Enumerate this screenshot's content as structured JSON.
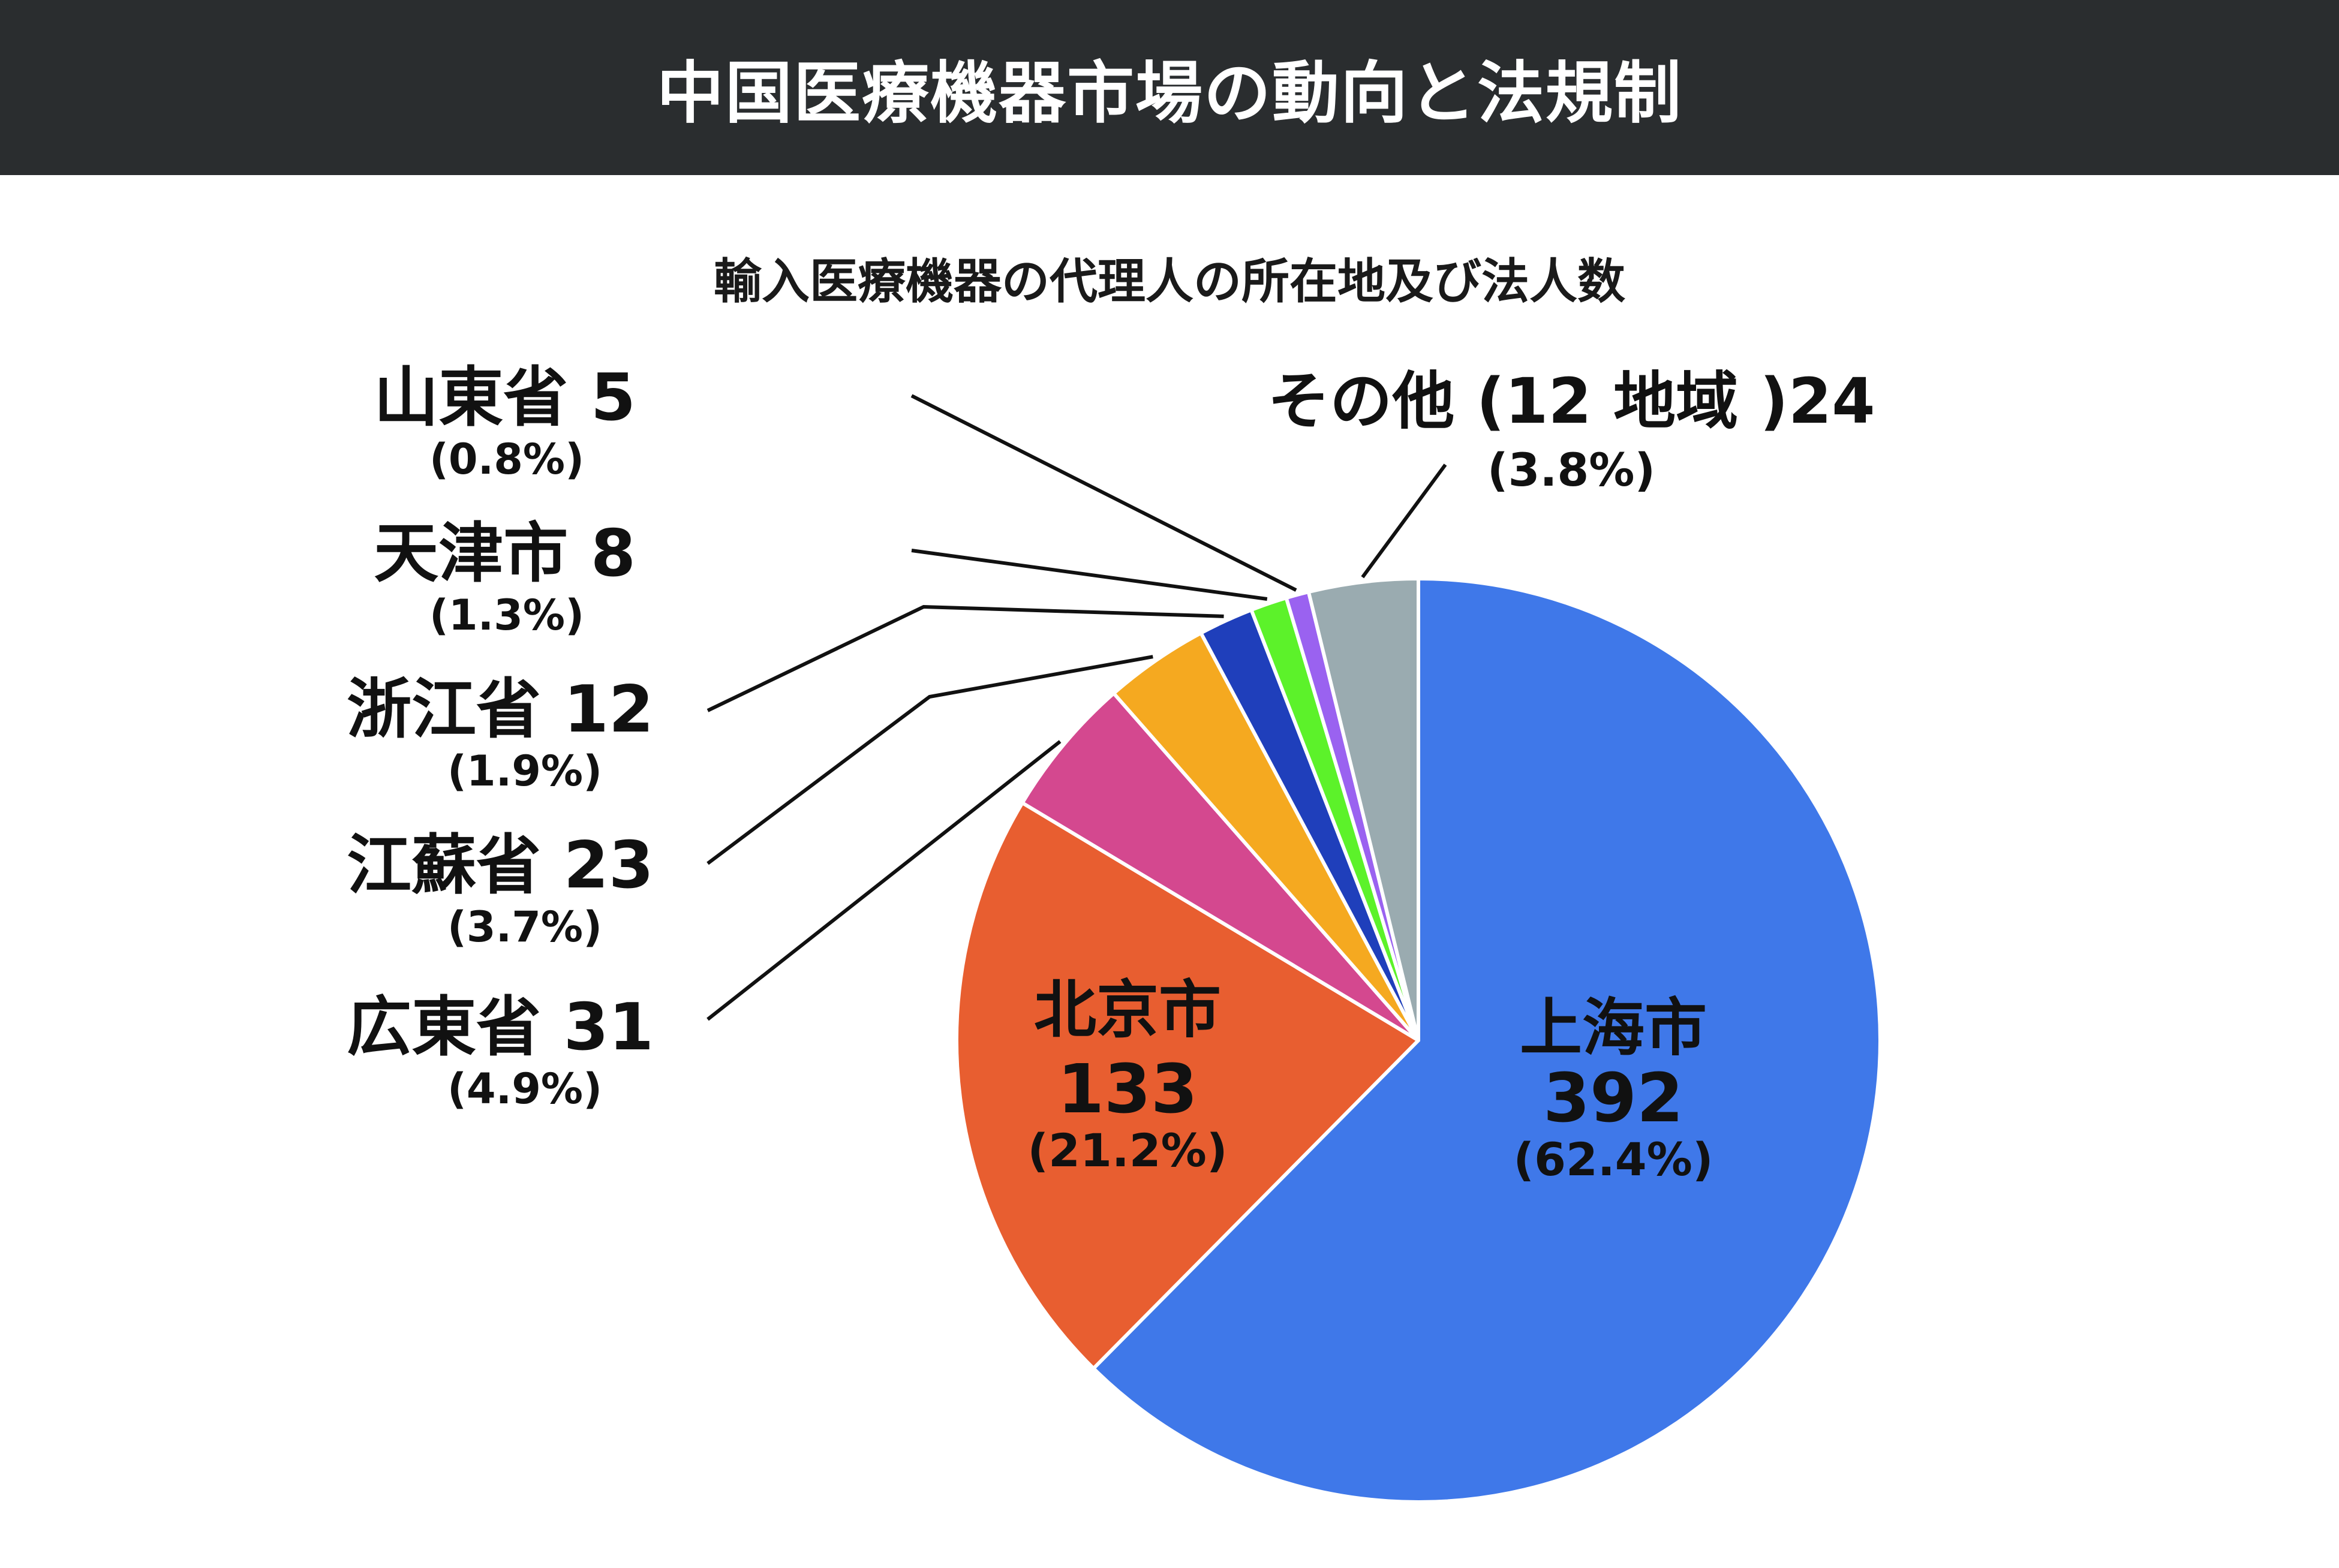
{
  "header": {
    "title": "中国医療機器市場の動向と法規制"
  },
  "chart_data": {
    "type": "pie",
    "title": "輸入医療機器の代理人の所在地及び法人数",
    "slices": [
      {
        "label": "上海市",
        "value": 392,
        "percent": "(62.4%)",
        "color": "#3f78e9"
      },
      {
        "label": "北京市",
        "value": 133,
        "percent": "(21.2%)",
        "color": "#e85e30"
      },
      {
        "label": "広東省",
        "value": 31,
        "percent": "(4.9%)",
        "color": "#d4488f"
      },
      {
        "label": "江蘇省",
        "value": 23,
        "percent": "(3.7%)",
        "color": "#f5a920"
      },
      {
        "label": "浙江省",
        "value": 12,
        "percent": "(1.9%)",
        "color": "#1f3fbb"
      },
      {
        "label": "天津市",
        "value": 8,
        "percent": "(1.3%)",
        "color": "#5cf22a"
      },
      {
        "label": "山東省",
        "value": 5,
        "percent": "(0.8%)",
        "color": "#9a62f0"
      },
      {
        "label": "その他 (12 地域 )",
        "value": 24,
        "percent": "(3.8%)",
        "color": "#9aabb0"
      }
    ]
  }
}
